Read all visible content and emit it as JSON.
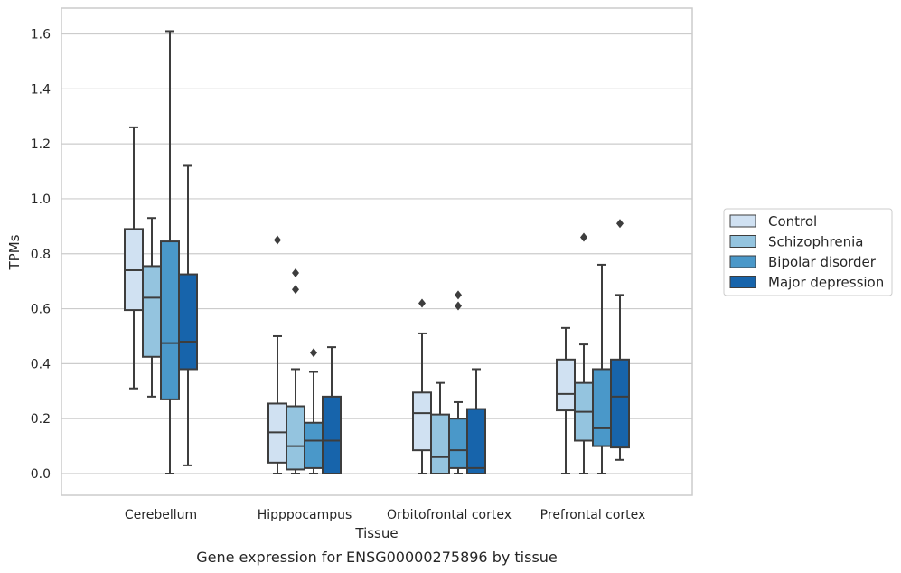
{
  "chart_data": {
    "type": "box",
    "caption": "Gene expression for ENSG00000275896 by tissue",
    "xlabel": "Tissue",
    "ylabel": "TPMs",
    "ylim": [
      -0.08,
      1.69
    ],
    "yticks": [
      0.0,
      0.2,
      0.4,
      0.6,
      0.8,
      1.0,
      1.2,
      1.4,
      1.6
    ],
    "ytick_labels": [
      "0.0",
      "0.2",
      "0.4",
      "0.6",
      "0.8",
      "1.0",
      "1.2",
      "1.4",
      "1.6"
    ],
    "grid": true,
    "legend_position": "outside-right",
    "categories": [
      "Cerebellum",
      "Hipppocampus",
      "Orbitofrontal cortex",
      "Prefrontal cortex"
    ],
    "series": [
      {
        "name": "Control",
        "color": "#d0e1f2",
        "boxes": [
          {
            "whislo": 0.31,
            "q1": 0.595,
            "med": 0.74,
            "q3": 0.89,
            "whishi": 1.26,
            "fliers": []
          },
          {
            "whislo": 0.0,
            "q1": 0.04,
            "med": 0.15,
            "q3": 0.255,
            "whishi": 0.5,
            "fliers": [
              0.85
            ]
          },
          {
            "whislo": 0.0,
            "q1": 0.085,
            "med": 0.22,
            "q3": 0.295,
            "whishi": 0.51,
            "fliers": [
              0.62
            ]
          },
          {
            "whislo": 0.0,
            "q1": 0.23,
            "med": 0.29,
            "q3": 0.415,
            "whishi": 0.53,
            "fliers": []
          }
        ]
      },
      {
        "name": "Schizophrenia",
        "color": "#94c4df",
        "boxes": [
          {
            "whislo": 0.28,
            "q1": 0.425,
            "med": 0.64,
            "q3": 0.755,
            "whishi": 0.93,
            "fliers": []
          },
          {
            "whislo": 0.0,
            "q1": 0.015,
            "med": 0.1,
            "q3": 0.245,
            "whishi": 0.38,
            "fliers": [
              0.67,
              0.73
            ]
          },
          {
            "whislo": 0.0,
            "q1": 0.0,
            "med": 0.06,
            "q3": 0.215,
            "whishi": 0.33,
            "fliers": []
          },
          {
            "whislo": 0.0,
            "q1": 0.12,
            "med": 0.225,
            "q3": 0.33,
            "whishi": 0.47,
            "fliers": [
              0.86
            ]
          }
        ]
      },
      {
        "name": "Bipolar disorder",
        "color": "#4a98c9",
        "boxes": [
          {
            "whislo": 0.0,
            "q1": 0.27,
            "med": 0.475,
            "q3": 0.845,
            "whishi": 1.61,
            "fliers": []
          },
          {
            "whislo": 0.0,
            "q1": 0.02,
            "med": 0.12,
            "q3": 0.185,
            "whishi": 0.37,
            "fliers": [
              0.44
            ]
          },
          {
            "whislo": 0.0,
            "q1": 0.02,
            "med": 0.085,
            "q3": 0.2,
            "whishi": 0.26,
            "fliers": [
              0.61,
              0.65
            ]
          },
          {
            "whislo": 0.0,
            "q1": 0.1,
            "med": 0.165,
            "q3": 0.38,
            "whishi": 0.76,
            "fliers": []
          }
        ]
      },
      {
        "name": "Major depression",
        "color": "#1764ab",
        "boxes": [
          {
            "whislo": 0.03,
            "q1": 0.38,
            "med": 0.48,
            "q3": 0.725,
            "whishi": 1.12,
            "fliers": []
          },
          {
            "whislo": 0.0,
            "q1": 0.0,
            "med": 0.12,
            "q3": 0.28,
            "whishi": 0.46,
            "fliers": []
          },
          {
            "whislo": 0.0,
            "q1": 0.0,
            "med": 0.02,
            "q3": 0.235,
            "whishi": 0.38,
            "fliers": []
          },
          {
            "whislo": 0.05,
            "q1": 0.095,
            "med": 0.28,
            "q3": 0.415,
            "whishi": 0.65,
            "fliers": [
              0.91
            ]
          }
        ]
      }
    ]
  }
}
